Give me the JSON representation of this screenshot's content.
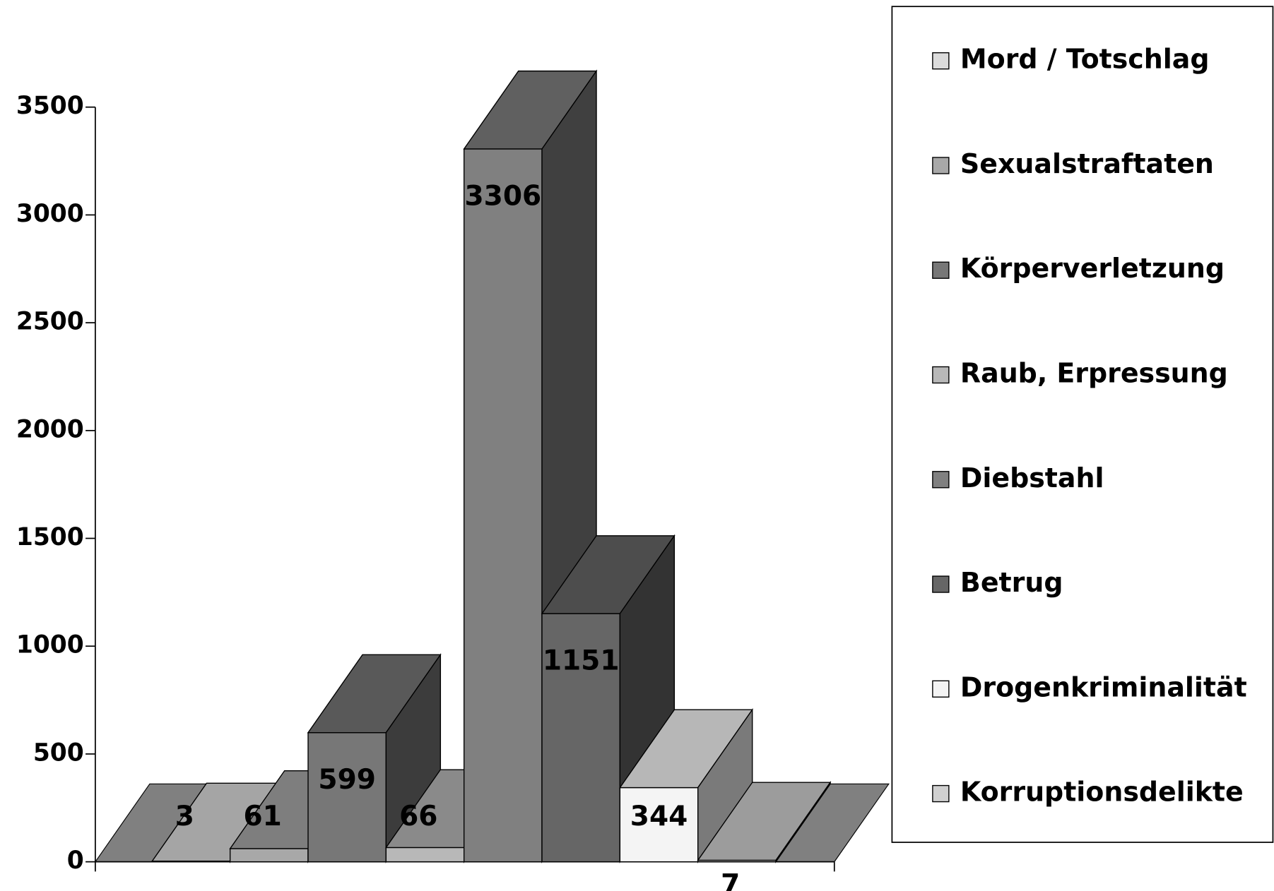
{
  "chart_data": {
    "type": "bar3d",
    "categories": [
      null
    ],
    "series": [
      {
        "name": "Mord / Totschlag",
        "color": "#dcdcdc",
        "values": [
          3
        ]
      },
      {
        "name": "Sexualstraftaten",
        "color": "#a8a8a8",
        "values": [
          61
        ]
      },
      {
        "name": "Körperverletzung",
        "color": "#777777",
        "values": [
          599
        ]
      },
      {
        "name": "Raub, Erpressung",
        "color": "#b8b8b8",
        "values": [
          66
        ]
      },
      {
        "name": "Diebstahl",
        "color": "#808080",
        "values": [
          3306
        ]
      },
      {
        "name": "Betrug",
        "color": "#666666",
        "values": [
          1151
        ]
      },
      {
        "name": "Drogenkriminalität",
        "color": "#f4f4f4",
        "values": [
          344
        ]
      },
      {
        "name": "Korruptionsdelikte",
        "color": "#d0d0d0",
        "values": [
          7
        ]
      }
    ],
    "ylim": [
      0,
      3500
    ],
    "yticks": [
      0,
      500,
      1000,
      1500,
      2000,
      2500,
      3000,
      3500
    ],
    "legend": "right",
    "floor_color": "#808080"
  }
}
